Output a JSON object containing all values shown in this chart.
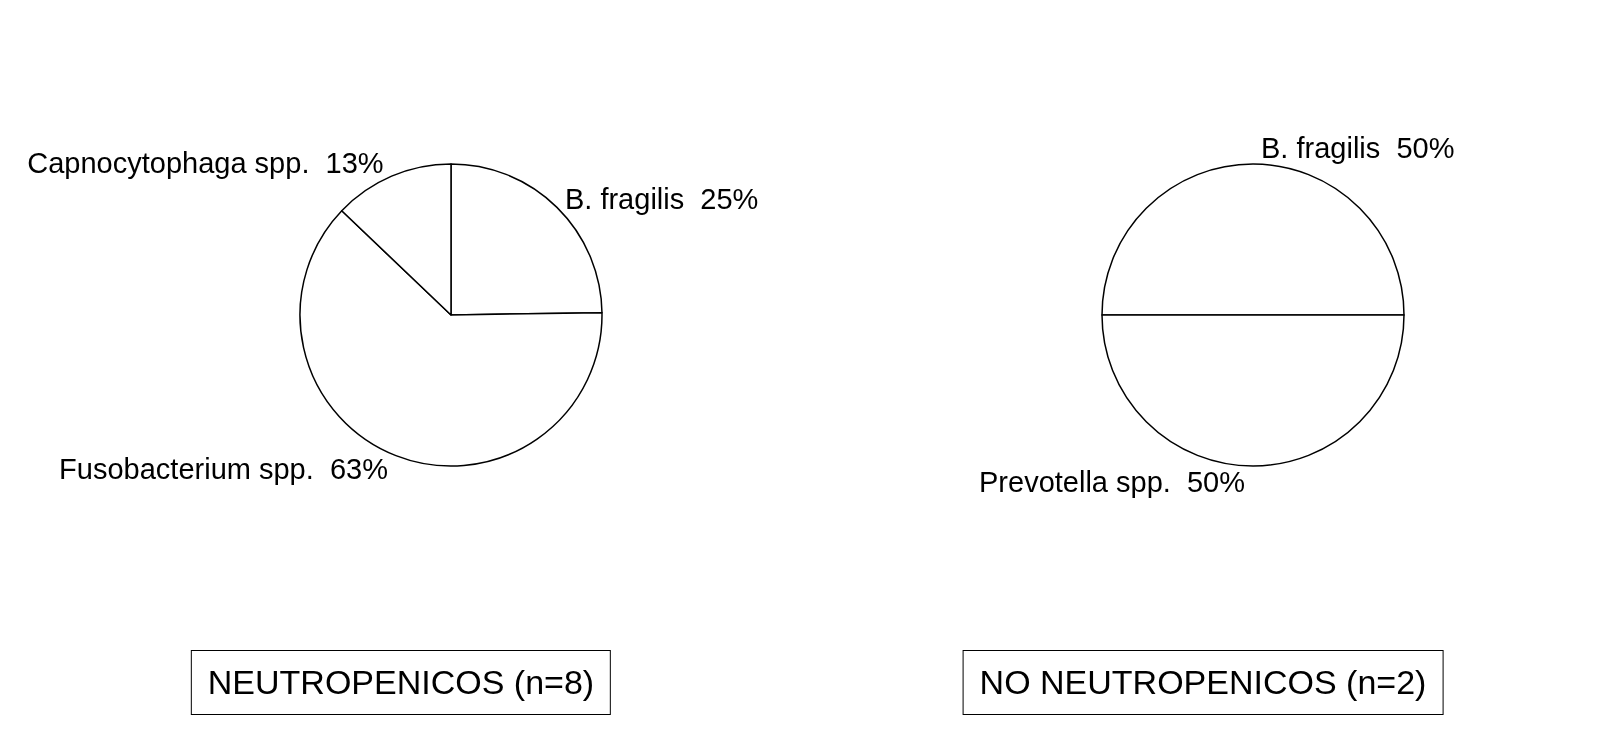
{
  "chart_data": [
    {
      "type": "pie",
      "title": "NEUTROPENICOS (n=8)",
      "categories": [
        "B. fragilis",
        "Fusobacterium spp.",
        "Capnocytophaga spp."
      ],
      "values": [
        25,
        63,
        13
      ],
      "value_labels": [
        "25%",
        "63%",
        "13%"
      ],
      "colors": [
        "#ffffff",
        "#ffffff",
        "#ffffff"
      ],
      "legend": false
    },
    {
      "type": "pie",
      "title": "NO NEUTROPENICOS (n=2)",
      "categories": [
        "B. fragilis",
        "Prevotella spp."
      ],
      "values": [
        50,
        50
      ],
      "value_labels": [
        "50%",
        "50%"
      ],
      "colors": [
        "#ffffff",
        "#ffffff"
      ],
      "legend": false
    }
  ]
}
